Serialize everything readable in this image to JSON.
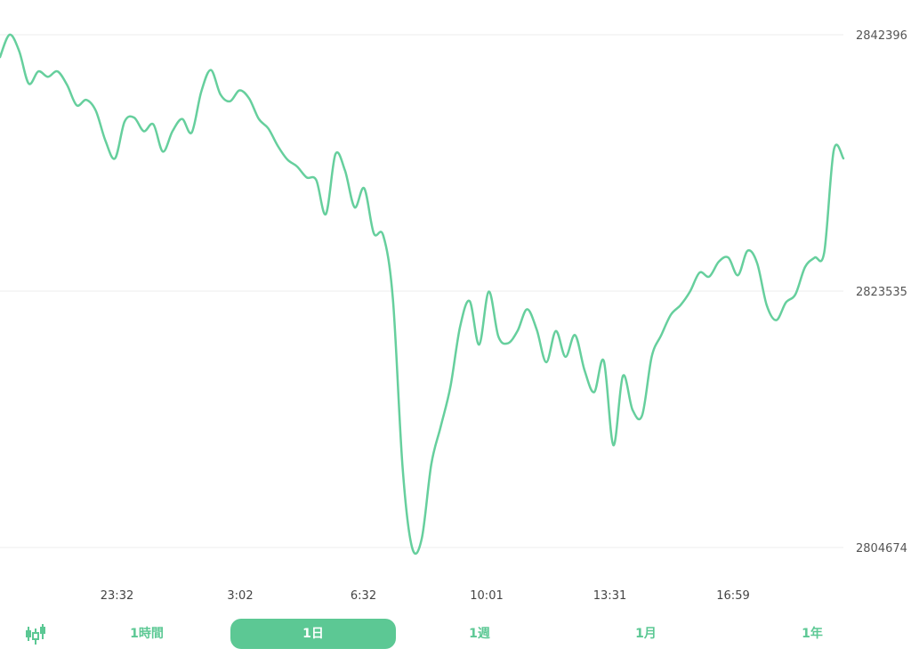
{
  "colors": {
    "line": "#66cf9d",
    "accent": "#5cc894",
    "grid": "#eeeeee"
  },
  "chart_data": {
    "type": "line",
    "title": "",
    "xlabel": "",
    "ylabel": "",
    "ylim": [
      2804674,
      2842396
    ],
    "yticks": [
      "2842396",
      "2823535",
      "2804674"
    ],
    "xticks": [
      "23:32",
      "3:02",
      "6:32",
      "10:01",
      "13:31",
      "16:59"
    ],
    "grid": true,
    "series": [
      {
        "values": [
          2840750,
          2842396,
          2841200,
          2838800,
          2839700,
          2839300,
          2839700,
          2838700,
          2837200,
          2837600,
          2836800,
          2834600,
          2833300,
          2836000,
          2836300,
          2835300,
          2835800,
          2833800,
          2835300,
          2836200,
          2835200,
          2838200,
          2839800,
          2838000,
          2837500,
          2838300,
          2837700,
          2836200,
          2835500,
          2834200,
          2833200,
          2832700,
          2831900,
          2831700,
          2829200,
          2833600,
          2832400,
          2829700,
          2831100,
          2827800,
          2827600,
          2822900,
          2810600,
          2804674,
          2805300,
          2810800,
          2813600,
          2816500,
          2820900,
          2822800,
          2819600,
          2823500,
          2820200,
          2819700,
          2820600,
          2822200,
          2820700,
          2818300,
          2820600,
          2818700,
          2820300,
          2817700,
          2816100,
          2818400,
          2812200,
          2817300,
          2814800,
          2814400,
          2818700,
          2820300,
          2821800,
          2822500,
          2823500,
          2824900,
          2824600,
          2825700,
          2826000,
          2824700,
          2826500,
          2825600,
          2822500,
          2821400,
          2822700,
          2823300,
          2825300,
          2826000,
          2826400,
          2833900,
          2833300
        ]
      }
    ]
  },
  "range_selector": {
    "candle_icon": "candlestick-chart-icon",
    "options": [
      {
        "label": "1時間",
        "active": false
      },
      {
        "label": "1日",
        "active": true
      },
      {
        "label": "1週",
        "active": false
      },
      {
        "label": "1月",
        "active": false
      },
      {
        "label": "1年",
        "active": false
      }
    ]
  }
}
